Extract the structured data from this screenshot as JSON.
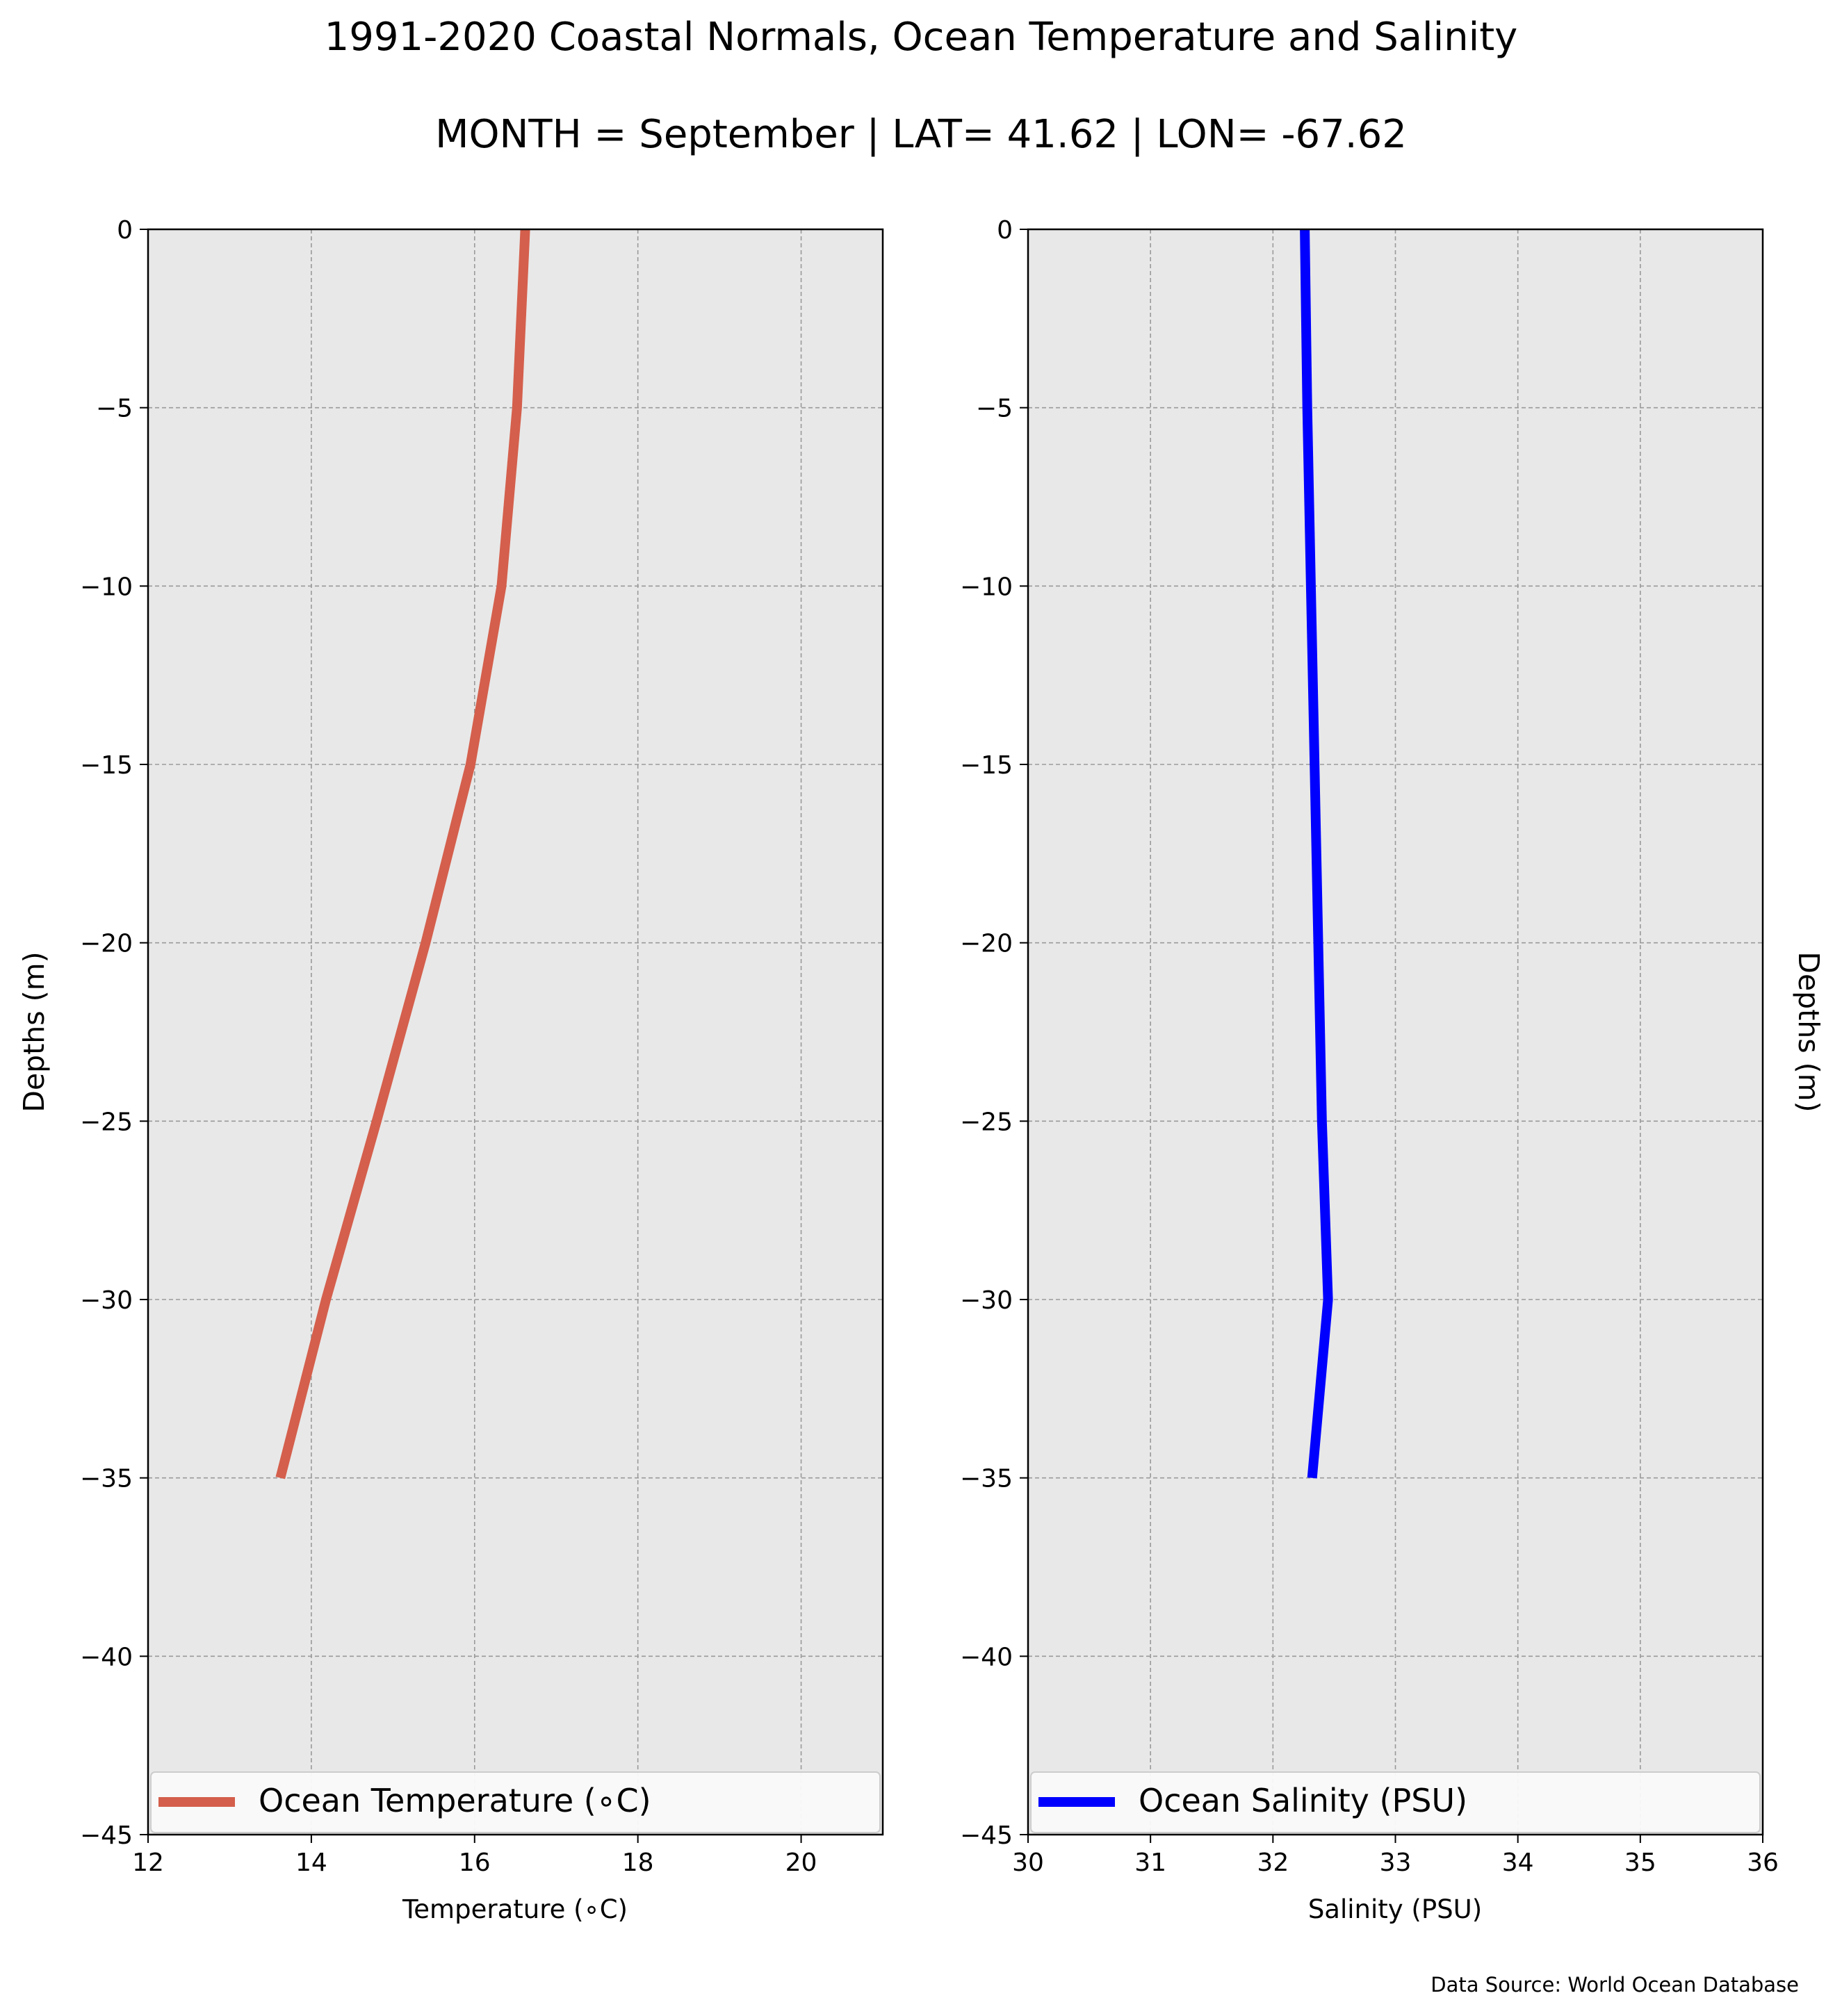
{
  "title": "1991-2020 Coastal Normals, Ocean Temperature and Salinity",
  "subtitle": "MONTH = September | LAT= 41.62 | LON= -67.62",
  "source_note": "Data Source: World Ocean Database",
  "chart_data": [
    {
      "type": "line",
      "xlabel": "Temperature (∘C)",
      "ylabel": "Depths (m)",
      "xlim": [
        12,
        21
      ],
      "ylim": [
        -45,
        0
      ],
      "x_ticks": [
        12,
        14,
        16,
        18,
        20
      ],
      "y_ticks": [
        0,
        -5,
        -10,
        -15,
        -20,
        -25,
        -30,
        -35,
        -40,
        -45
      ],
      "grid": true,
      "legend_position": "bottom",
      "series": [
        {
          "name": "Ocean Temperature (∘C)",
          "color": "#d45f4c",
          "x": [
            16.62,
            16.52,
            16.33,
            15.95,
            15.4,
            14.8,
            14.18,
            13.62
          ],
          "y": [
            0,
            -5,
            -10,
            -15,
            -20,
            -25,
            -30,
            -35
          ]
        }
      ]
    },
    {
      "type": "line",
      "xlabel": "Salinity (PSU)",
      "ylabel": "Depths (m)",
      "xlim": [
        30,
        36
      ],
      "ylim": [
        -45,
        0
      ],
      "x_ticks": [
        30,
        31,
        32,
        33,
        34,
        35,
        36
      ],
      "y_ticks": [
        0,
        -5,
        -10,
        -15,
        -20,
        -25,
        -30,
        -35,
        -40,
        -45
      ],
      "grid": true,
      "legend_position": "bottom",
      "series": [
        {
          "name": "Ocean Salinity (PSU)",
          "color": "#0000ff",
          "x": [
            32.26,
            32.28,
            32.31,
            32.34,
            32.37,
            32.4,
            32.45,
            32.32
          ],
          "y": [
            0,
            -5,
            -10,
            -15,
            -20,
            -25,
            -30,
            -35
          ]
        }
      ]
    }
  ]
}
